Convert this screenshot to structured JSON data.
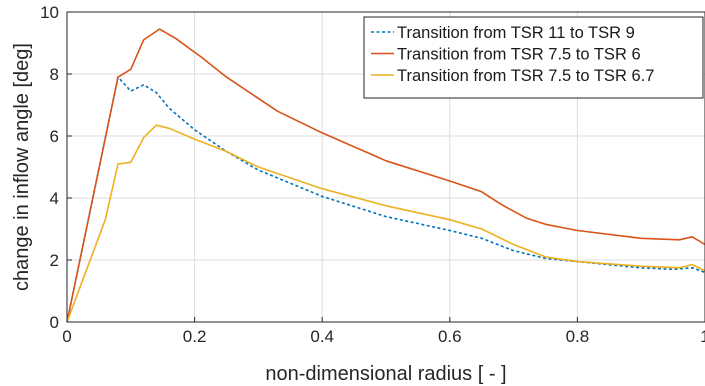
{
  "chart_data": {
    "type": "line",
    "xlabel": "non-dimensional radius [ - ]",
    "ylabel": "change in inflow angle [deg]",
    "xlim": [
      0,
      1
    ],
    "ylim": [
      0,
      10
    ],
    "x_ticks": [
      0,
      0.2,
      0.4,
      0.6,
      0.8,
      1
    ],
    "x_tick_labels": [
      "0",
      "0.2",
      "0.4",
      "0.6",
      "0.8",
      "1"
    ],
    "y_ticks": [
      0,
      2,
      4,
      6,
      8,
      10
    ],
    "y_tick_labels": [
      "0",
      "2",
      "4",
      "6",
      "8",
      "10"
    ],
    "grid": true,
    "legend_position": "top-right",
    "series": [
      {
        "name": "Transition from TSR 11 to TSR 9",
        "color": "#0072BD",
        "dash": "dotted",
        "x": [
          0,
          0.08,
          0.1,
          0.12,
          0.14,
          0.16,
          0.2,
          0.25,
          0.3,
          0.4,
          0.5,
          0.6,
          0.65,
          0.7,
          0.75,
          0.8,
          0.9,
          0.95,
          0.98,
          1.0
        ],
        "y": [
          0,
          7.9,
          7.45,
          7.65,
          7.4,
          6.9,
          6.2,
          5.5,
          4.9,
          4.05,
          3.4,
          2.95,
          2.7,
          2.3,
          2.05,
          1.95,
          1.75,
          1.7,
          1.75,
          1.6
        ]
      },
      {
        "name": "Transition from TSR 7.5 to TSR 6",
        "color": "#D95319",
        "dash": "solid",
        "x": [
          0,
          0.08,
          0.1,
          0.12,
          0.145,
          0.17,
          0.21,
          0.25,
          0.33,
          0.4,
          0.5,
          0.6,
          0.65,
          0.68,
          0.72,
          0.75,
          0.8,
          0.9,
          0.96,
          0.98,
          1.0
        ],
        "y": [
          0,
          7.9,
          8.15,
          9.1,
          9.45,
          9.15,
          8.55,
          7.9,
          6.8,
          6.1,
          5.2,
          4.55,
          4.2,
          3.8,
          3.35,
          3.15,
          2.95,
          2.7,
          2.65,
          2.75,
          2.5
        ]
      },
      {
        "name": "Transition from TSR 7.5 to TSR 6.7",
        "color": "#EDB120",
        "dash": "solid",
        "x": [
          0,
          0.06,
          0.08,
          0.1,
          0.12,
          0.14,
          0.16,
          0.2,
          0.25,
          0.3,
          0.4,
          0.5,
          0.6,
          0.65,
          0.7,
          0.75,
          0.8,
          0.9,
          0.96,
          0.98,
          1.0
        ],
        "y": [
          0,
          3.3,
          5.1,
          5.15,
          5.95,
          6.35,
          6.25,
          5.9,
          5.5,
          5.0,
          4.3,
          3.75,
          3.3,
          3.0,
          2.5,
          2.1,
          1.95,
          1.8,
          1.75,
          1.85,
          1.65
        ]
      }
    ]
  }
}
